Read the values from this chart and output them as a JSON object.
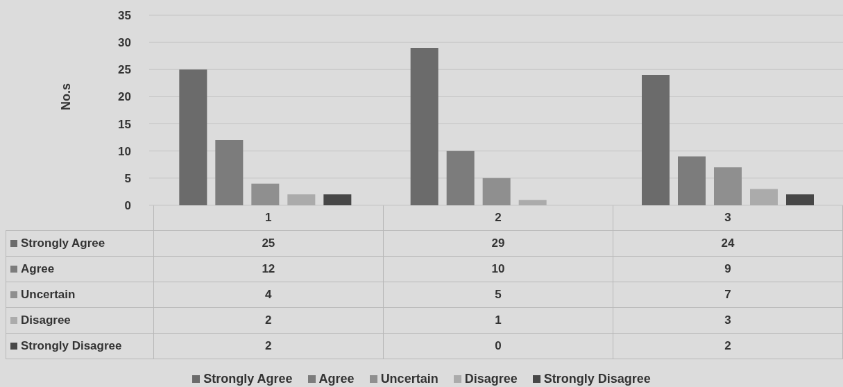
{
  "chart_data": {
    "type": "bar",
    "ylabel": "No.s",
    "categories": [
      "1",
      "2",
      "3"
    ],
    "series": [
      {
        "name": "Strongly Agree",
        "color": "#6b6b6b",
        "values": [
          25,
          29,
          24
        ]
      },
      {
        "name": "Agree",
        "color": "#7c7c7c",
        "values": [
          12,
          10,
          9
        ]
      },
      {
        "name": "Uncertain",
        "color": "#8f8f8f",
        "values": [
          4,
          5,
          7
        ]
      },
      {
        "name": "Disagree",
        "color": "#ababab",
        "values": [
          2,
          1,
          3
        ]
      },
      {
        "name": "Strongly Disagree",
        "color": "#474747",
        "values": [
          2,
          0,
          2
        ]
      }
    ],
    "ylim": [
      0,
      35
    ],
    "yticks": [
      0,
      5,
      10,
      15,
      20,
      25,
      30,
      35
    ],
    "grid": "y",
    "legend": "bottom",
    "data_labels": true
  }
}
